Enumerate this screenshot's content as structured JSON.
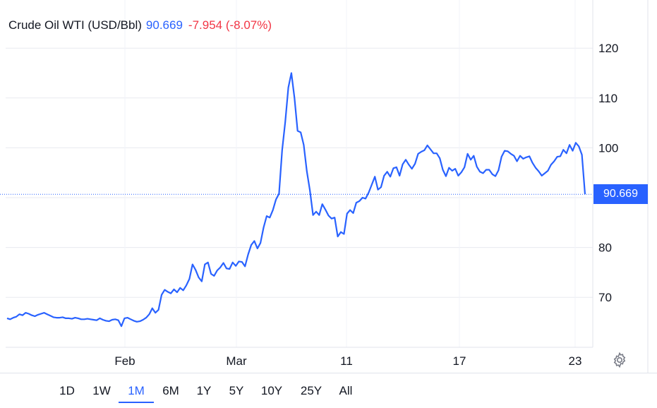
{
  "legend": {
    "name": "Crude Oil WTI (USD/Bbl)",
    "price": "90.669",
    "change": "-7.954 (-8.07%)"
  },
  "last_price_label": "90.669",
  "colors": {
    "line": "#2962ff",
    "negative": "#f23645",
    "grid": "#f0f3fa",
    "text": "#131722"
  },
  "icons": {
    "settings": "gear-icon"
  },
  "range_selector": {
    "active": "1M",
    "buttons": [
      "1D",
      "1W",
      "1M",
      "6M",
      "1Y",
      "5Y",
      "10Y",
      "25Y",
      "All"
    ]
  },
  "chart_data": {
    "type": "line",
    "title": "Crude Oil WTI (USD/Bbl)",
    "xlabel": "",
    "ylabel": "",
    "x_tick_labels": [
      "Feb",
      "Mar",
      "11",
      "17",
      "23"
    ],
    "y_tick_labels": [
      "70",
      "80",
      "100",
      "110",
      "120"
    ],
    "ylim": [
      60,
      123
    ],
    "grid": true,
    "last_value": 90.669,
    "series": [
      {
        "values": [
          65.8,
          65.6,
          65.9,
          66.1,
          66.6,
          66.4,
          66.9,
          66.7,
          66.4,
          66.2,
          66.5,
          66.7,
          66.9,
          66.6,
          66.3,
          66.0,
          65.9,
          65.9,
          66.0,
          65.8,
          65.8,
          65.7,
          65.9,
          65.8,
          65.6,
          65.6,
          65.7,
          65.6,
          65.5,
          65.4,
          65.8,
          65.5,
          65.3,
          65.2,
          65.5,
          65.6,
          65.4,
          64.2,
          65.8,
          65.9,
          65.6,
          65.3,
          65.1,
          65.2,
          65.5,
          65.9,
          66.6,
          67.8,
          66.9,
          67.5,
          70.5,
          71.5,
          71.1,
          70.8,
          71.6,
          71.0,
          71.9,
          71.4,
          72.4,
          73.7,
          76.6,
          75.5,
          74.0,
          73.2,
          76.6,
          77.0,
          74.7,
          74.3,
          75.4,
          76.0,
          76.9,
          75.8,
          75.7,
          77.0,
          76.3,
          77.2,
          77.1,
          76.2,
          78.6,
          80.5,
          81.3,
          79.8,
          80.9,
          84.0,
          86.3,
          86.0,
          87.5,
          89.6,
          90.8,
          99.5,
          105.2,
          112.1,
          115.0,
          110.0,
          103.4,
          103.1,
          100.6,
          95.3,
          91.4,
          86.5,
          87.2,
          86.5,
          88.7,
          87.6,
          86.4,
          85.8,
          86.0,
          82.2,
          83.1,
          82.7,
          86.8,
          87.5,
          86.9,
          89.0,
          89.3,
          90.0,
          89.8,
          91.0,
          92.6,
          94.2,
          91.6,
          92.1,
          94.4,
          95.2,
          94.2,
          95.9,
          96.1,
          94.4,
          96.7,
          97.6,
          96.6,
          95.8,
          96.8,
          98.8,
          99.2,
          99.5,
          100.5,
          99.7,
          98.9,
          98.9,
          97.9,
          95.6,
          94.3,
          96.0,
          95.4,
          95.8,
          94.4,
          95.1,
          96.1,
          98.8,
          97.6,
          98.4,
          96.2,
          95.2,
          94.9,
          95.6,
          95.6,
          94.7,
          94.3,
          95.5,
          98.2,
          99.4,
          99.3,
          98.8,
          98.4,
          97.3,
          98.4,
          97.8,
          98.1,
          98.3,
          97.0,
          96.0,
          95.3,
          94.4,
          94.9,
          95.4,
          96.6,
          97.3,
          98.2,
          98.3,
          99.6,
          98.9,
          100.6,
          99.4,
          101.0,
          100.3,
          98.6,
          90.669
        ]
      }
    ]
  }
}
